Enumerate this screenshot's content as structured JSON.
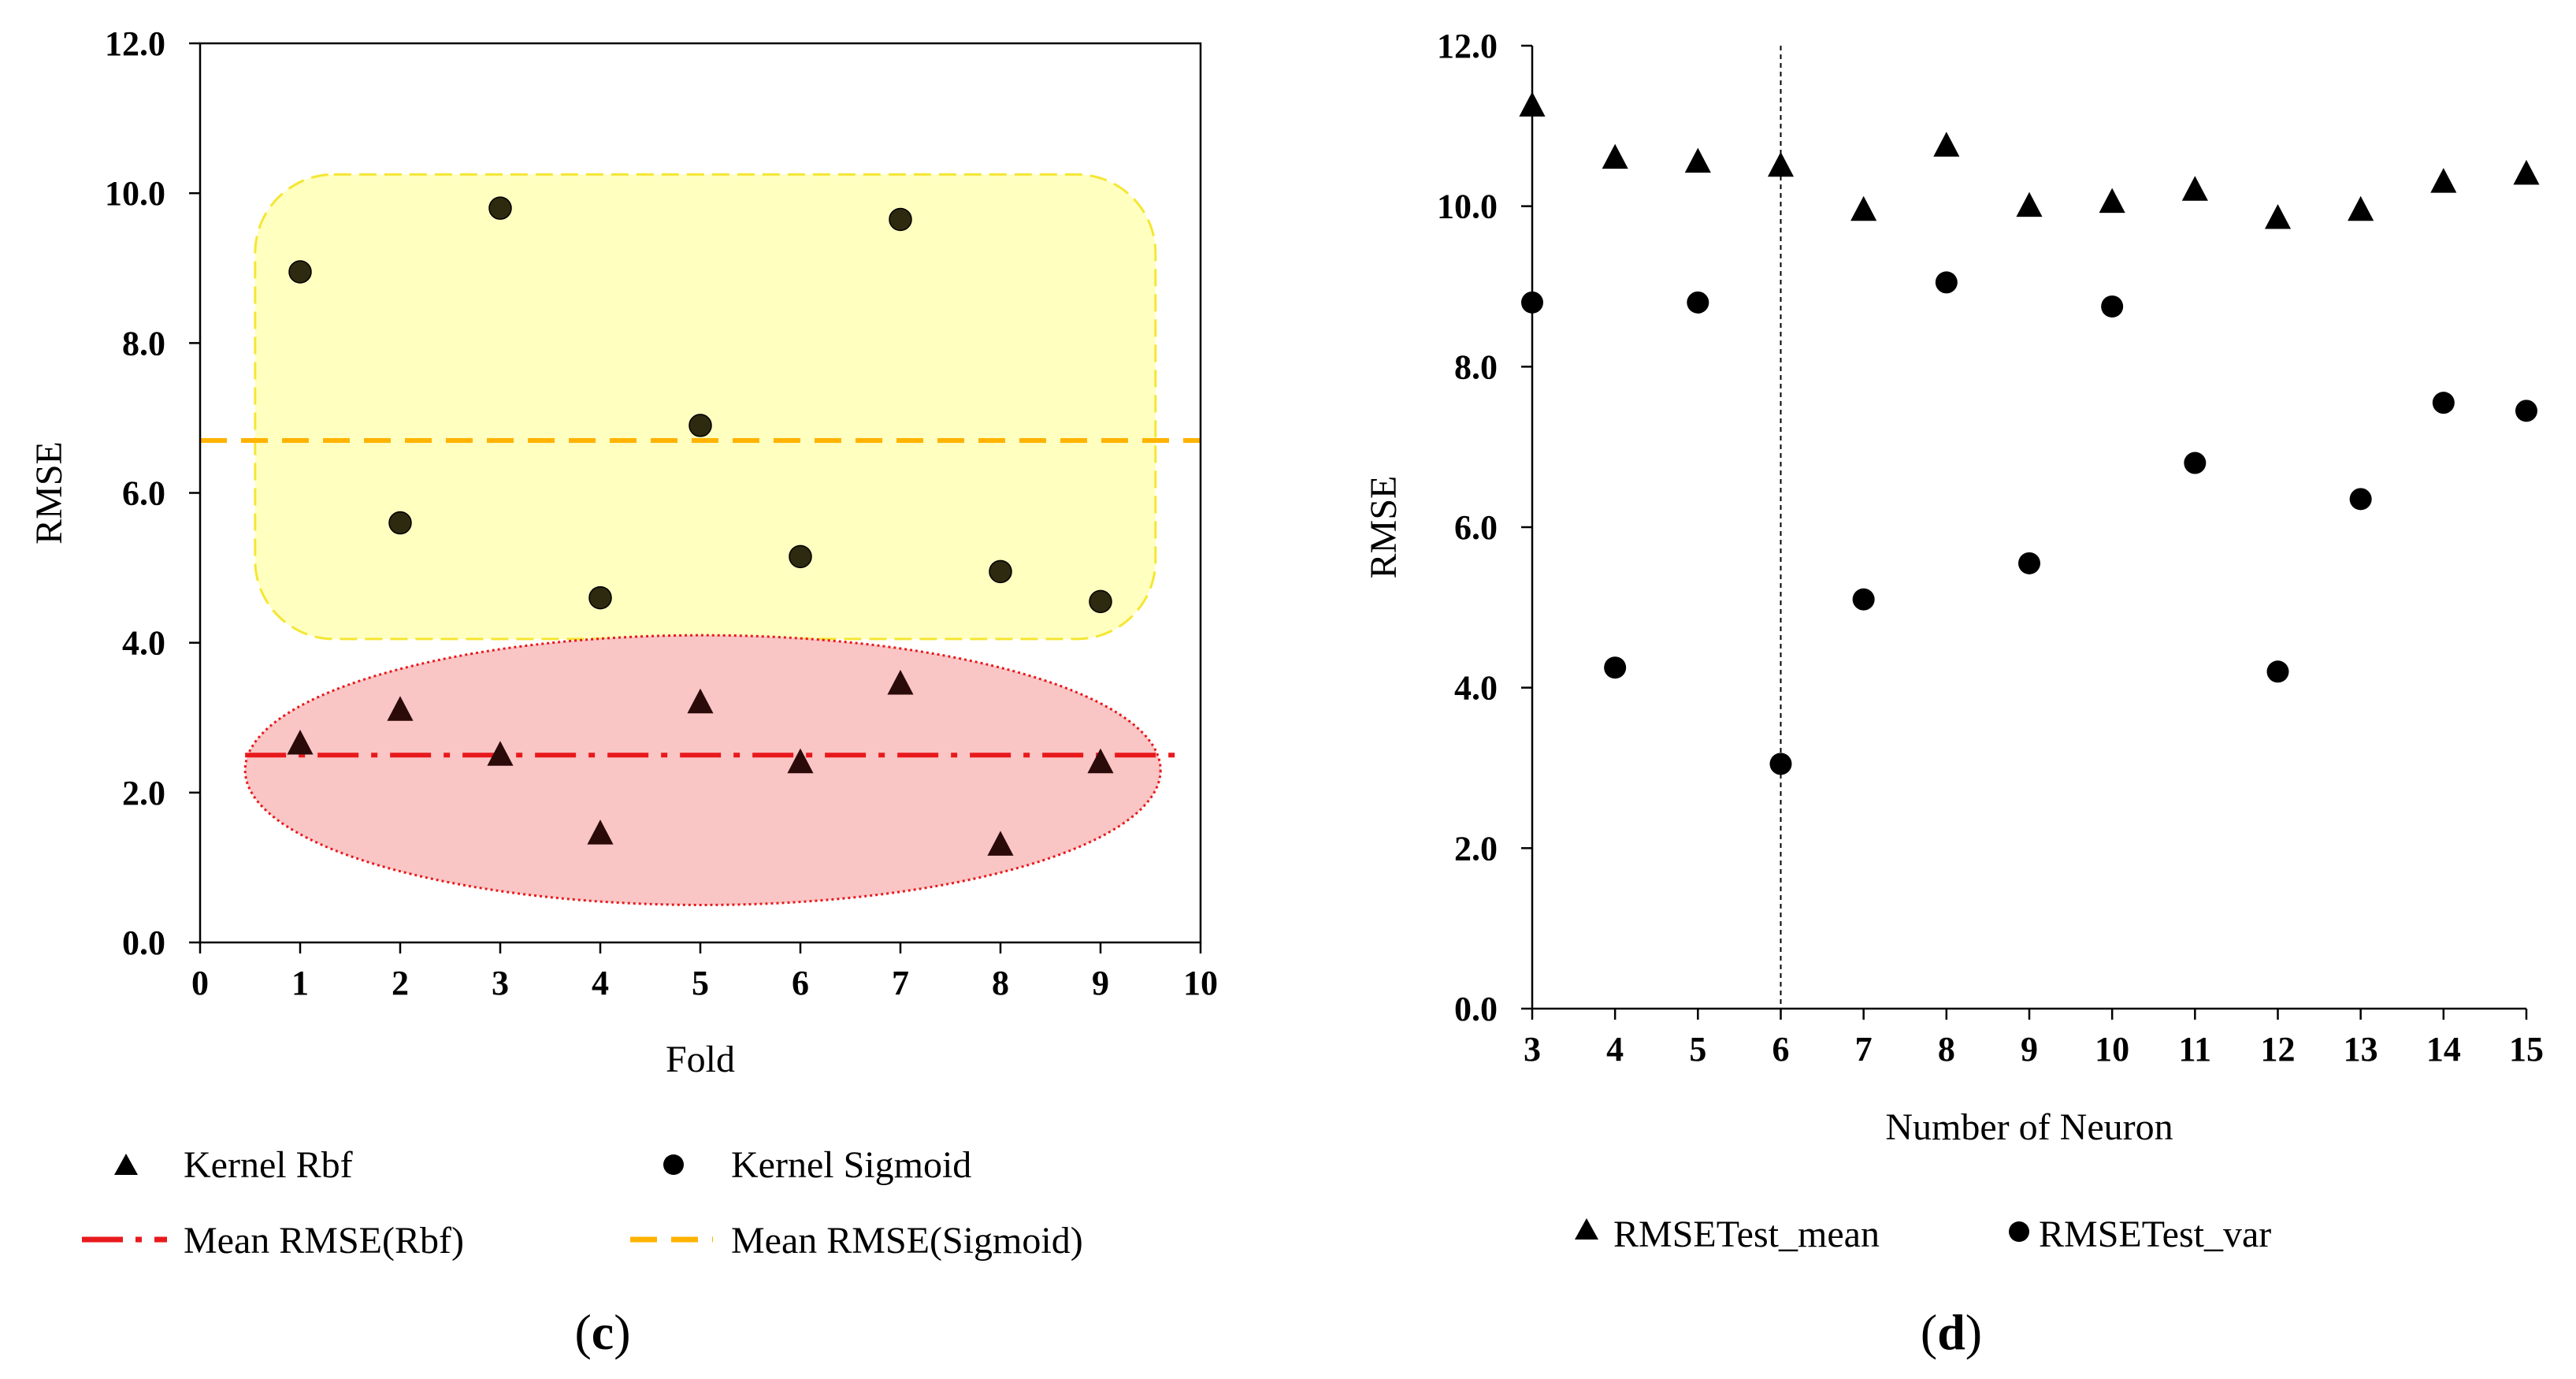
{
  "chart_data": [
    {
      "type": "scatter",
      "panel_label_open": "(",
      "panel_label_letter": "c",
      "panel_label_close": ")",
      "xlabel": "Fold",
      "ylabel": "RMSE",
      "xlim": [
        0,
        10
      ],
      "ylim": [
        0,
        12
      ],
      "xticks": [
        "0",
        "1",
        "2",
        "3",
        "4",
        "5",
        "6",
        "7",
        "8",
        "9",
        "10"
      ],
      "yticks": [
        "0.0",
        "2.0",
        "4.0",
        "6.0",
        "8.0",
        "10.0",
        "12.0"
      ],
      "series": [
        {
          "name": "Kernel Rbf",
          "marker": "triangle",
          "color": "#2b0a0a",
          "x": [
            1,
            2,
            3,
            4,
            5,
            6,
            7,
            8,
            9
          ],
          "y": [
            2.65,
            3.1,
            2.5,
            1.45,
            3.2,
            2.4,
            3.45,
            1.3,
            2.4
          ]
        },
        {
          "name": "Kernel Sigmoid",
          "marker": "circle",
          "color": "#2e2a10",
          "x": [
            1,
            2,
            3,
            4,
            5,
            6,
            7,
            8,
            9
          ],
          "y": [
            8.95,
            5.6,
            9.8,
            4.6,
            6.9,
            5.15,
            9.65,
            4.95,
            4.55
          ]
        }
      ],
      "reference_lines": [
        {
          "name": "Mean RMSE(Rbf)",
          "y": 2.5,
          "color": "#e8191c",
          "style": "dash-dot"
        },
        {
          "name": "Mean RMSE(Sigmoid)",
          "y": 6.7,
          "color": "#ffb300",
          "style": "dashed"
        }
      ],
      "regions": [
        {
          "shape": "rounded-rect",
          "fill": "#ffffc0",
          "stroke": "#f5e633",
          "x_range": [
            0.55,
            9.55
          ],
          "y_range": [
            4.05,
            10.25
          ]
        },
        {
          "shape": "ellipse",
          "fill": "#fac5c5",
          "stroke": "#e8191c",
          "x_range": [
            0.45,
            9.6
          ],
          "y_range": [
            0.5,
            4.1
          ]
        }
      ],
      "legend": [
        {
          "label": "Kernel Rbf",
          "symbol": "triangle"
        },
        {
          "label": "Kernel Sigmoid",
          "symbol": "circle"
        },
        {
          "label": "Mean RMSE(Rbf)",
          "symbol": "dash-dot-red"
        },
        {
          "label": "Mean RMSE(Sigmoid)",
          "symbol": "dashed-orange"
        }
      ]
    },
    {
      "type": "scatter",
      "panel_label_open": "(",
      "panel_label_letter": "d",
      "panel_label_close": ")",
      "xlabel": "Number of Neuron",
      "ylabel": "RMSE",
      "xlim": [
        3,
        15
      ],
      "ylim": [
        0,
        12
      ],
      "xticks": [
        "3",
        "4",
        "5",
        "6",
        "7",
        "8",
        "9",
        "10",
        "11",
        "12",
        "13",
        "14",
        "15"
      ],
      "yticks": [
        "0.0",
        "2.0",
        "4.0",
        "6.0",
        "8.0",
        "10.0",
        "12.0"
      ],
      "vertical_line_x": 6,
      "series": [
        {
          "name": "RMSETest_mean",
          "marker": "triangle",
          "color": "#000000",
          "x": [
            3,
            4,
            5,
            6,
            7,
            8,
            9,
            10,
            11,
            12,
            13,
            14,
            15
          ],
          "y": [
            11.25,
            10.6,
            10.55,
            10.5,
            9.95,
            10.75,
            10.0,
            10.05,
            10.2,
            9.85,
            9.95,
            10.3,
            10.4
          ]
        },
        {
          "name": "RMSETest_var",
          "marker": "circle",
          "color": "#000000",
          "x": [
            3,
            4,
            5,
            6,
            7,
            8,
            9,
            10,
            11,
            12,
            13,
            14,
            15
          ],
          "y": [
            8.8,
            4.25,
            8.8,
            3.05,
            5.1,
            9.05,
            5.55,
            8.75,
            6.8,
            4.2,
            6.35,
            7.55,
            7.45
          ]
        }
      ],
      "legend": [
        {
          "label": "RMSETest_mean",
          "symbol": "triangle"
        },
        {
          "label": "RMSETest_var",
          "symbol": "circle"
        }
      ]
    }
  ]
}
